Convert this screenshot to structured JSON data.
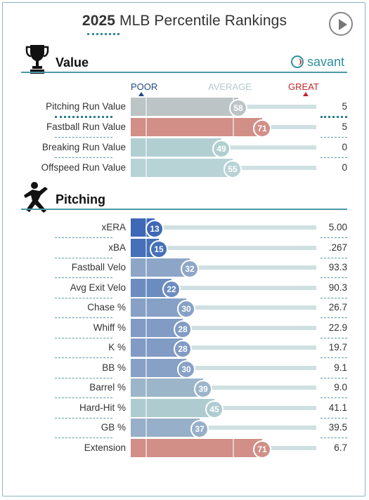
{
  "header": {
    "year": "2025",
    "title": "MLB Percentile Rankings"
  },
  "brand": {
    "name": "savant"
  },
  "axis": {
    "poor": "POOR",
    "average": "AVERAGE",
    "great": "GREAT",
    "colors": {
      "poor": "#1f4a8a",
      "average": "#b7c9cc",
      "great": "#c0262a"
    }
  },
  "sections": {
    "value": {
      "title": "Value",
      "icon": "trophy-icon",
      "rows": [
        {
          "label": "Pitching Run Value",
          "percentile": 58,
          "value": "5",
          "color": "#bcc4c5"
        },
        {
          "label": "Fastball Run Value",
          "percentile": 71,
          "value": "5",
          "color": "#d18f87"
        },
        {
          "label": "Breaking Run Value",
          "percentile": 49,
          "value": "0",
          "color": "#b1cfd1"
        },
        {
          "label": "Offspeed Run Value",
          "percentile": 55,
          "value": "0",
          "color": "#b8d3d5"
        }
      ]
    },
    "pitching": {
      "title": "Pitching",
      "icon": "pitcher-icon",
      "rows": [
        {
          "label": "xERA",
          "percentile": 13,
          "value": "5.00",
          "color": "#3f68b6"
        },
        {
          "label": "xBA",
          "percentile": 15,
          "value": ".267",
          "color": "#4670b8"
        },
        {
          "label": "Fastball Velo",
          "percentile": 32,
          "value": "93.3",
          "color": "#8da6c8"
        },
        {
          "label": "Avg Exit Velo",
          "percentile": 22,
          "value": "90.3",
          "color": "#6c8cc0"
        },
        {
          "label": "Chase %",
          "percentile": 30,
          "value": "26.7",
          "color": "#87a1c6"
        },
        {
          "label": "Whiff %",
          "percentile": 28,
          "value": "22.9",
          "color": "#819bc4"
        },
        {
          "label": "K %",
          "percentile": 28,
          "value": "19.7",
          "color": "#819bc4"
        },
        {
          "label": "BB %",
          "percentile": 30,
          "value": "9.1",
          "color": "#87a1c6"
        },
        {
          "label": "Barrel %",
          "percentile": 39,
          "value": "9.0",
          "color": "#9cb5c9"
        },
        {
          "label": "Hard-Hit %",
          "percentile": 45,
          "value": "41.1",
          "color": "#aecbd0"
        },
        {
          "label": "GB %",
          "percentile": 37,
          "value": "39.5",
          "color": "#97afc8"
        },
        {
          "label": "Extension",
          "percentile": 71,
          "value": "6.7",
          "color": "#d18f87"
        }
      ]
    }
  }
}
